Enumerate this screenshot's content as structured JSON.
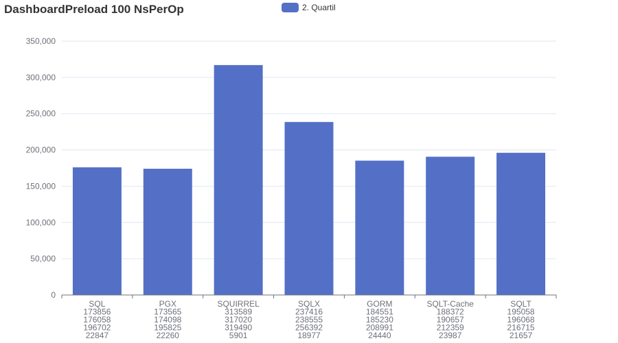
{
  "chart_data": {
    "type": "bar",
    "title": "DashboardPreload 100 NsPerOp",
    "legend_position": "top-center",
    "grid": true,
    "ylim": [
      0,
      350000
    ],
    "yticks": [
      "0",
      "50,000",
      "100,000",
      "150,000",
      "200,000",
      "250,000",
      "300,000",
      "350,000"
    ],
    "categories": [
      "SQL",
      "PGX",
      "SQUIRREL",
      "SQLX",
      "GORM",
      "SQLT-Cache",
      "SQLT"
    ],
    "category_details": [
      [
        "173856",
        "176058",
        "196702",
        "22847"
      ],
      [
        "173565",
        "174098",
        "195825",
        "22260"
      ],
      [
        "313589",
        "317020",
        "319490",
        "5901"
      ],
      [
        "237416",
        "238555",
        "256392",
        "18977"
      ],
      [
        "184551",
        "185230",
        "208991",
        "24440"
      ],
      [
        "188372",
        "190657",
        "212359",
        "23987"
      ],
      [
        "195058",
        "196068",
        "216715",
        "21657"
      ]
    ],
    "series": [
      {
        "name": "2. Quartil",
        "color": "#5470c6",
        "values": [
          176058,
          174098,
          317020,
          238555,
          185230,
          190657,
          196068
        ]
      }
    ]
  }
}
